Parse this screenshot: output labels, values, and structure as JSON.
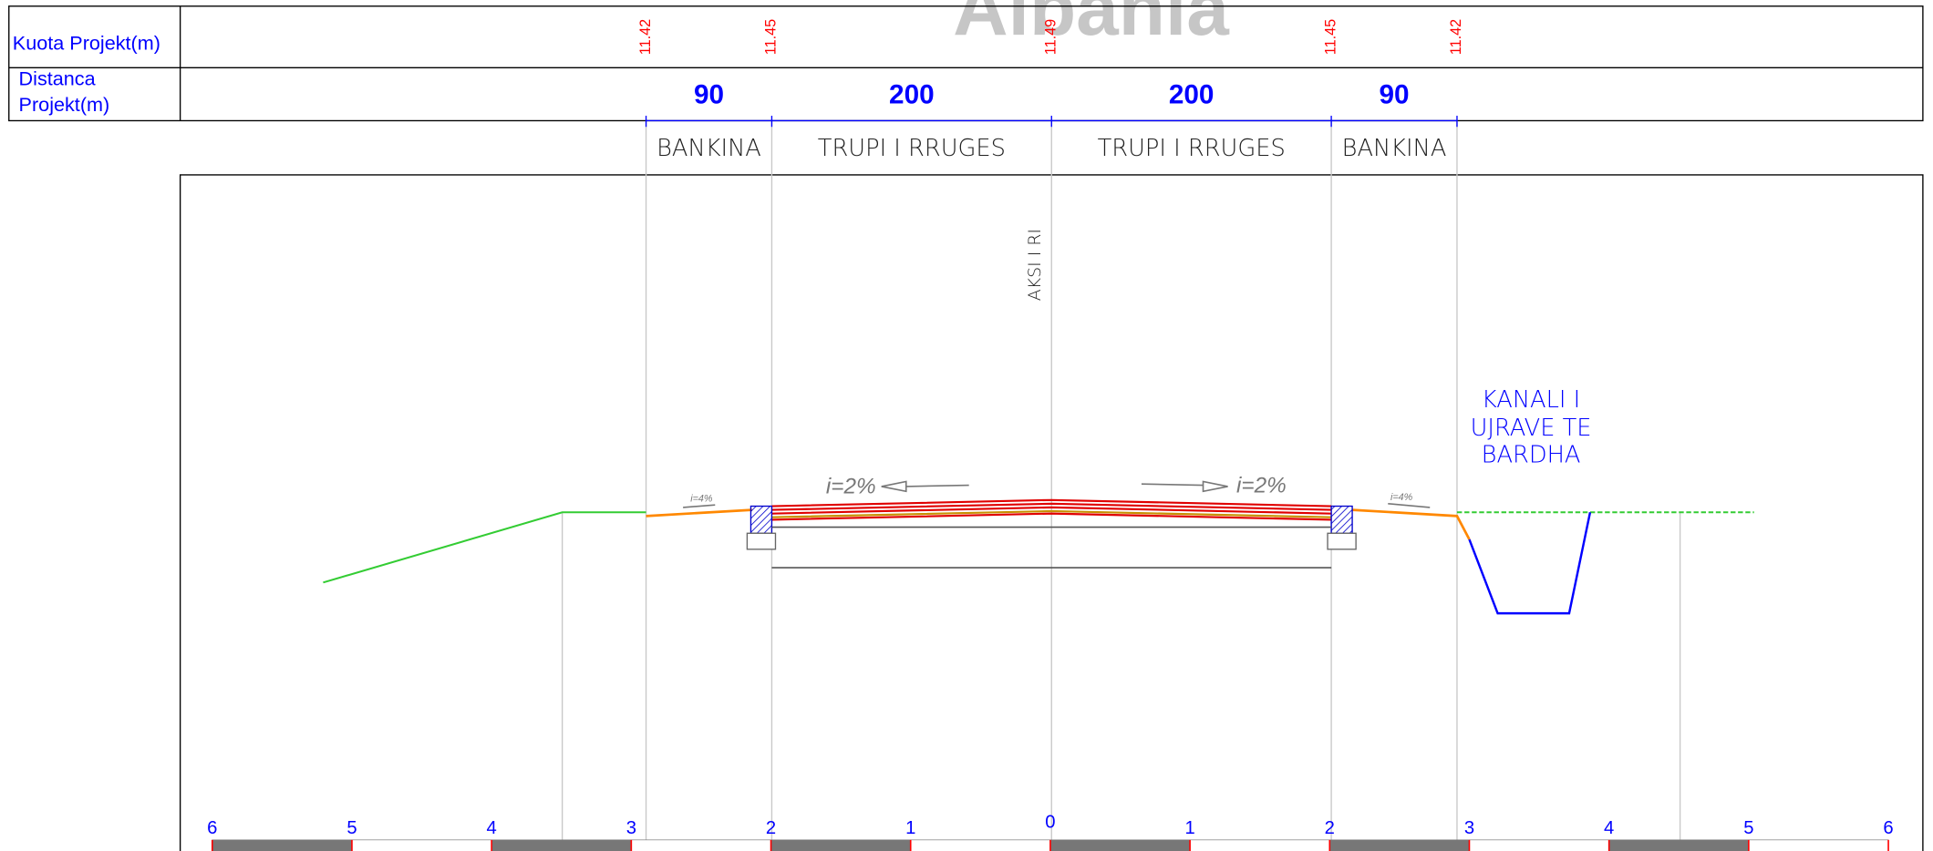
{
  "watermark": "Albania",
  "table": {
    "rows": [
      [
        "Kuota Projekt(m)"
      ],
      [
        "Distanca",
        "Projekt(m)"
      ]
    ]
  },
  "elevations": [
    11.42,
    11.45,
    11.49,
    11.45,
    11.42
  ],
  "distances": [
    90,
    200,
    200,
    90
  ],
  "segments": [
    "BANKINA",
    "TRUPI I RRUGES",
    "TRUPI I RRUGES",
    "BANKINA"
  ],
  "axis_label": "AKSI I RI",
  "channel_label": [
    "KANALI I",
    "UJRAVE TE",
    "BARDHA"
  ],
  "slopes": [
    "i=2%",
    "i=2%",
    "i=4%",
    "i=4%"
  ],
  "scale": [
    6,
    5,
    4,
    3,
    2,
    1,
    0,
    1,
    2,
    3,
    4,
    5,
    6
  ]
}
